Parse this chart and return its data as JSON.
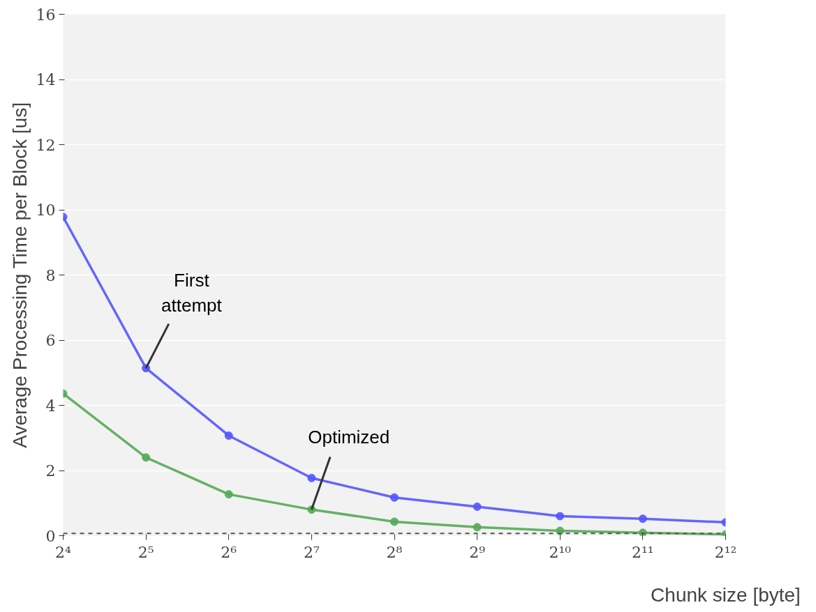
{
  "chart_data": {
    "type": "line",
    "xlabel": "Chunk size [byte]",
    "ylabel": "Average Processing Time per Block [us]",
    "x": [
      16,
      32,
      64,
      128,
      256,
      512,
      1024,
      2048,
      4096
    ],
    "log": "x",
    "series": [
      {
        "color": "#5555ff",
        "values": [
          9.78,
          5.14,
          3.07,
          1.77,
          1.17,
          0.89,
          0.6,
          0.52,
          0.41
        ]
      },
      {
        "color": "#55aa55",
        "values": [
          4.36,
          2.4,
          1.27,
          0.8,
          0.43,
          0.26,
          0.15,
          0.09,
          0.04
        ]
      }
    ],
    "annotations": [
      {
        "text": "First\nattempt",
        "x": 32,
        "y": 5.14
      },
      {
        "text": "Optimized",
        "x": 128,
        "y": 0.8
      }
    ],
    "ref_lines": [
      {
        "axis": "y",
        "value": 0.07,
        "label": null,
        "color": "#555555",
        "line_style": "dashed"
      }
    ],
    "xlim": [
      16,
      4096
    ],
    "ylim": [
      0,
      16
    ],
    "xticks": [
      {
        "value": 16,
        "label": "2⁴"
      },
      {
        "value": 32,
        "label": "2⁵"
      },
      {
        "value": 64,
        "label": "2⁶"
      },
      {
        "value": 128,
        "label": "2⁷"
      },
      {
        "value": 256,
        "label": "2⁸"
      },
      {
        "value": 512,
        "label": "2⁹"
      },
      {
        "value": 1024,
        "label": "2¹⁰"
      },
      {
        "value": 2048,
        "label": "2¹¹"
      },
      {
        "value": 4096,
        "label": "2¹²"
      }
    ],
    "yticks": [
      0,
      2,
      4,
      6,
      8,
      10,
      12,
      14,
      16
    ],
    "grid": "y",
    "marker": "circle",
    "line_style": "solid"
  }
}
